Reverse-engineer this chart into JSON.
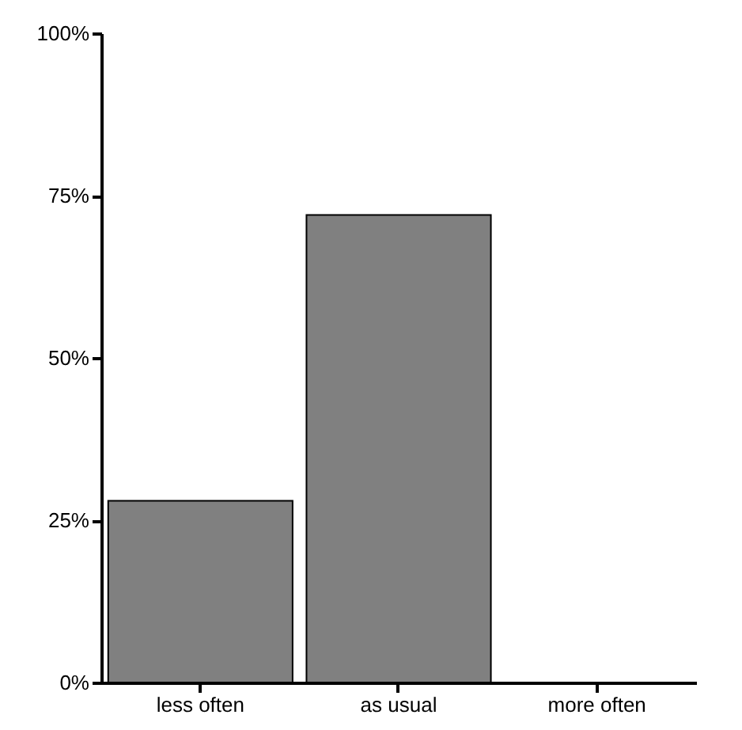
{
  "chart_data": {
    "type": "bar",
    "categories": [
      "less often",
      "as usual",
      "more often"
    ],
    "values": [
      28,
      72,
      0
    ],
    "color": "#808080",
    "ylim": [
      0,
      100
    ],
    "yticks": [
      {
        "value": 0,
        "label": "0%"
      },
      {
        "value": 25,
        "label": "25%"
      },
      {
        "value": 50,
        "label": "50%"
      },
      {
        "value": 75,
        "label": "75%"
      },
      {
        "value": 100,
        "label": "100%"
      }
    ],
    "grid": false
  }
}
